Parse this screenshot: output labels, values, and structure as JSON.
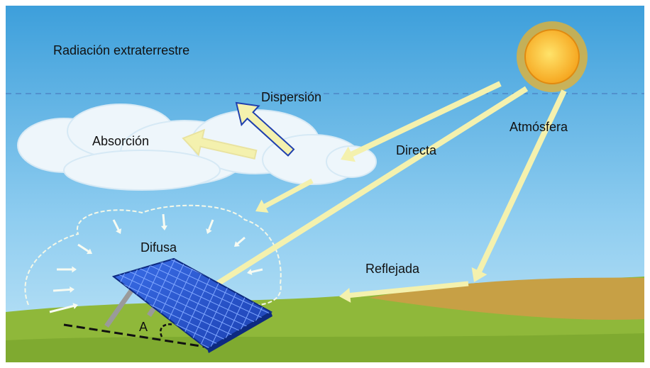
{
  "labels": {
    "extraterrestrial": "Radiación extraterrestre",
    "scattering": "Dispersión",
    "absorption": "Absorción",
    "direct": "Directa",
    "atmosphere": "Atmósfera",
    "diffuse": "Difusa",
    "reflected": "Reflejada",
    "angle": "A"
  }
}
